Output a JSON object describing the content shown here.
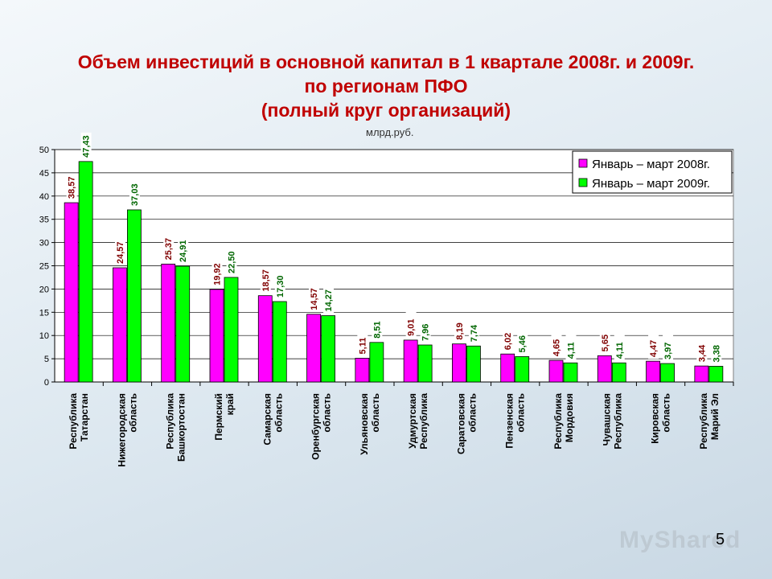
{
  "title_lines": [
    "Объем инвестиций в основной капитал в 1 квартале 2008г. и 2009г.",
    "по регионам ПФО",
    "(полный круг организаций)"
  ],
  "unit_label": "млрд.руб.",
  "page_number": "5",
  "watermark_text": "MyShared",
  "chart_data": {
    "type": "bar",
    "title": "Объем инвестиций в основной капитал в 1 квартале 2008г. и 2009г. по регионам ПФО (полный круг организаций)",
    "ylabel": "млрд.руб.",
    "ylim": [
      0,
      50
    ],
    "yticks": [
      0,
      5,
      10,
      15,
      20,
      25,
      30,
      35,
      40,
      45,
      50
    ],
    "grid": true,
    "legend_position": "top-right",
    "categories": [
      [
        "Республика",
        "Татарстан"
      ],
      [
        "Нижегородская",
        "область"
      ],
      [
        "Республика",
        "Башкортостан"
      ],
      [
        "Пермский",
        "край"
      ],
      [
        "Самарская",
        "область"
      ],
      [
        "Оренбургская",
        "область"
      ],
      [
        "Ульяновская",
        "область"
      ],
      [
        "Удмуртская",
        "Республика"
      ],
      [
        "Саратовская",
        "область"
      ],
      [
        "Пензенская",
        "область"
      ],
      [
        "Республика",
        "Мордовия"
      ],
      [
        "Чувашская",
        "Республика"
      ],
      [
        "Кировская",
        "область"
      ],
      [
        "Республика",
        "Марий Эл"
      ]
    ],
    "series": [
      {
        "name": "Январь – март 2008г.",
        "color": "#ff00ff",
        "label_color": "#800000",
        "values": [
          38.57,
          24.57,
          25.37,
          19.92,
          18.57,
          14.57,
          5.11,
          9.01,
          8.19,
          6.02,
          4.65,
          5.65,
          4.47,
          3.44
        ],
        "labels": [
          "38,57",
          "24,57",
          "25,37",
          "19,92",
          "18,57",
          "14,57",
          "5,11",
          "9,01",
          "8,19",
          "6,02",
          "4,65",
          "5,65",
          "4,47",
          "3,44"
        ]
      },
      {
        "name": "Январь – март 2009г.",
        "color": "#00ff00",
        "label_color": "#006600",
        "values": [
          47.43,
          37.03,
          24.91,
          22.5,
          17.3,
          14.27,
          8.51,
          7.96,
          7.74,
          5.46,
          4.11,
          4.11,
          3.97,
          3.38
        ],
        "labels": [
          "47,43",
          "37,03",
          "24,91",
          "22,50",
          "17,30",
          "14,27",
          "8,51",
          "7,96",
          "7,74",
          "5,46",
          "4,11",
          "4,11",
          "3,97",
          "3,38"
        ]
      }
    ]
  }
}
